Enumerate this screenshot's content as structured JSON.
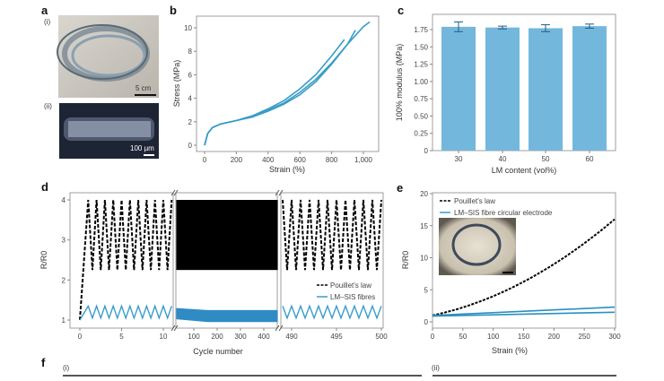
{
  "colors": {
    "blue": "#3a9cc8",
    "bar": "#74b7dd",
    "dark": "#111111",
    "axis": "#888888"
  },
  "panels": {
    "a": {
      "label": "a",
      "sub_i": "(i)",
      "sub_ii": "(ii)",
      "scale_i": "5 cm",
      "scale_ii": "100 µm"
    },
    "b": {
      "label": "b"
    },
    "c": {
      "label": "c"
    },
    "d": {
      "label": "d"
    },
    "e": {
      "label": "e"
    },
    "f": {
      "label": "f",
      "sub_i": "(i)",
      "sub_ii": "(ii)"
    }
  },
  "chart_data": [
    {
      "id": "b",
      "type": "line",
      "xlabel": "Strain (%)",
      "ylabel": "Stress (MPa)",
      "xlim": [
        0,
        1050
      ],
      "ylim": [
        0,
        11
      ],
      "xticks": [
        "0",
        "200",
        "400",
        "600",
        "800",
        "1,000"
      ],
      "yticks": [
        "0",
        "2",
        "4",
        "6",
        "8",
        "10"
      ],
      "series": [
        {
          "x": [
            0,
            20,
            50,
            100,
            200,
            300,
            400,
            500,
            600,
            700,
            800,
            900,
            1000,
            1040
          ],
          "y": [
            0,
            1,
            1.5,
            1.8,
            2.1,
            2.5,
            3.0,
            3.6,
            4.5,
            5.6,
            7.0,
            8.6,
            10.1,
            10.5
          ]
        },
        {
          "x": [
            0,
            20,
            50,
            100,
            200,
            300,
            400,
            500,
            600,
            700,
            800,
            880
          ],
          "y": [
            0,
            1,
            1.5,
            1.8,
            2.1,
            2.5,
            3.1,
            3.8,
            4.8,
            6.0,
            7.6,
            9.0
          ]
        },
        {
          "x": [
            0,
            20,
            50,
            100,
            200,
            300,
            400,
            500,
            600,
            700,
            800,
            900,
            950
          ],
          "y": [
            0,
            1,
            1.5,
            1.8,
            2.1,
            2.4,
            2.9,
            3.5,
            4.3,
            5.4,
            6.9,
            8.6,
            9.8
          ]
        }
      ]
    },
    {
      "id": "c",
      "type": "bar",
      "xlabel": "LM content (vol%)",
      "ylabel": "100% modulus (MPa)",
      "ylim": [
        0,
        1.85
      ],
      "categories": [
        "30",
        "40",
        "50",
        "60"
      ],
      "values": [
        1.79,
        1.78,
        1.77,
        1.8
      ],
      "errors": [
        0.07,
        0.02,
        0.05,
        0.03
      ],
      "yticks": [
        "0",
        "0.25",
        "0.50",
        "0.75",
        "1.00",
        "1.25",
        "1.50",
        "1.75"
      ]
    },
    {
      "id": "d",
      "type": "line",
      "xlabel": "Cycle number",
      "ylabel": "R/R0",
      "ylim": [
        0.8,
        4.1
      ],
      "yticks": [
        "1",
        "2",
        "3",
        "4"
      ],
      "segments": [
        {
          "range": [
            0,
            11.5
          ],
          "ticks": [
            "0",
            "5",
            "10"
          ]
        },
        {
          "range": [
            25,
            460
          ],
          "ticks": [
            "100",
            "200",
            "300",
            "400"
          ]
        },
        {
          "range": [
            488.8,
            500
          ],
          "ticks": [
            "490",
            "495",
            "500"
          ]
        }
      ],
      "series": [
        {
          "name": "Pouillet's law",
          "style": "dashed",
          "min": 2.25,
          "max": 4,
          "start": 1
        },
        {
          "name": "LM–SIS fibres",
          "style": "solid",
          "min": 1.05,
          "max": 1.35,
          "start": 1
        }
      ]
    },
    {
      "id": "e",
      "type": "line",
      "xlabel": "Strain (%)",
      "ylabel": "R/R0",
      "xlim": [
        0,
        300
      ],
      "ylim": [
        -0.5,
        20
      ],
      "xticks": [
        "0",
        "50",
        "100",
        "150",
        "200",
        "250",
        "300"
      ],
      "yticks": [
        "0",
        "5",
        "10",
        "15",
        "20"
      ],
      "series": [
        {
          "name": "Pouillet's law",
          "style": "dashed",
          "x": [
            0,
            50,
            100,
            150,
            200,
            250,
            300
          ],
          "y": [
            1,
            2.25,
            4,
            6.25,
            9,
            12.25,
            16
          ]
        },
        {
          "name": "LM–SIS fibre circular electrode",
          "style": "solid",
          "x": [
            0,
            300
          ],
          "y": [
            1,
            2.3
          ]
        },
        {
          "x": [
            0,
            300
          ],
          "y": [
            0.9,
            1.5
          ]
        }
      ]
    }
  ]
}
